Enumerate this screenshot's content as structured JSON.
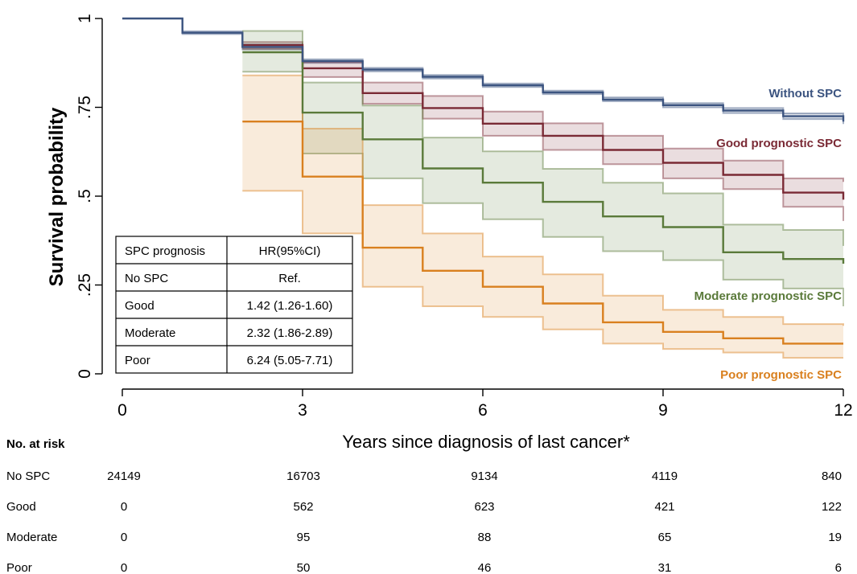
{
  "chart_data": {
    "type": "line",
    "subtype": "kaplan-meier step",
    "xlabel": "Years since diagnosis of last cancer*",
    "ylabel": "Survival probability",
    "xlim": [
      0,
      12
    ],
    "ylim": [
      0,
      1
    ],
    "xticks": [
      0,
      3,
      6,
      9,
      12
    ],
    "xtick_labels": [
      "0",
      "3",
      "6",
      "9",
      "12"
    ],
    "yticks": [
      0,
      0.25,
      0.5,
      0.75,
      1
    ],
    "ytick_labels": [
      "0",
      ".25",
      ".5",
      ".75",
      "1"
    ],
    "grid": false,
    "series": [
      {
        "name": "Without SPC",
        "color": "#3c5480",
        "x": [
          0,
          1,
          2,
          3,
          4,
          5,
          6,
          7,
          8,
          9,
          10,
          11,
          12
        ],
        "y": [
          1.0,
          0.96,
          0.92,
          0.88,
          0.856,
          0.836,
          0.812,
          0.792,
          0.772,
          0.756,
          0.741,
          0.725,
          0.71
        ],
        "ci_lower": [
          1.0,
          0.956,
          0.913,
          0.875,
          0.851,
          0.831,
          0.807,
          0.787,
          0.767,
          0.75,
          0.734,
          0.717,
          0.703
        ],
        "ci_upper": [
          1.0,
          0.964,
          0.927,
          0.885,
          0.861,
          0.841,
          0.817,
          0.797,
          0.778,
          0.762,
          0.748,
          0.733,
          0.718
        ]
      },
      {
        "name": "Good prognostic SPC",
        "color": "#7a2a35",
        "x": [
          2,
          3,
          4,
          5,
          6,
          7,
          8,
          9,
          10,
          11,
          12
        ],
        "y": [
          0.925,
          0.86,
          0.79,
          0.748,
          0.704,
          0.67,
          0.63,
          0.594,
          0.56,
          0.51,
          0.49
        ],
        "ci_lower": [
          0.915,
          0.835,
          0.76,
          0.718,
          0.67,
          0.63,
          0.59,
          0.55,
          0.52,
          0.47,
          0.43
        ],
        "ci_upper": [
          0.934,
          0.877,
          0.82,
          0.782,
          0.738,
          0.705,
          0.67,
          0.634,
          0.6,
          0.55,
          0.54
        ]
      },
      {
        "name": "Moderate prognostic SPC",
        "color": "#5a7a3a",
        "x": [
          2,
          3,
          4,
          5,
          6,
          7,
          8,
          9,
          10,
          11,
          12
        ],
        "y": [
          0.905,
          0.735,
          0.66,
          0.578,
          0.538,
          0.484,
          0.443,
          0.413,
          0.342,
          0.323,
          0.31
        ],
        "ci_lower": [
          0.85,
          0.62,
          0.55,
          0.48,
          0.435,
          0.385,
          0.345,
          0.32,
          0.265,
          0.24,
          0.19
        ],
        "ci_upper": [
          0.965,
          0.82,
          0.755,
          0.665,
          0.626,
          0.577,
          0.538,
          0.508,
          0.42,
          0.405,
          0.36
        ]
      },
      {
        "name": "Poor prognostic SPC",
        "color": "#d9801f",
        "x": [
          2,
          3,
          4,
          5,
          6,
          7,
          8,
          9,
          10,
          11,
          12
        ],
        "y": [
          0.71,
          0.555,
          0.355,
          0.29,
          0.245,
          0.198,
          0.145,
          0.118,
          0.1,
          0.085,
          0.085
        ],
        "ci_lower": [
          0.515,
          0.395,
          0.245,
          0.19,
          0.16,
          0.125,
          0.085,
          0.07,
          0.06,
          0.045,
          0.045
        ],
        "ci_upper": [
          0.84,
          0.69,
          0.475,
          0.395,
          0.33,
          0.28,
          0.22,
          0.18,
          0.16,
          0.14,
          0.135
        ]
      }
    ],
    "hr_table": {
      "header": [
        "SPC prognosis",
        "HR(95%CI)"
      ],
      "rows": [
        [
          "No SPC",
          "Ref."
        ],
        [
          "Good",
          "1.42 (1.26-1.60)"
        ],
        [
          "Moderate",
          "2.32 (1.86-2.89)"
        ],
        [
          "Poor",
          "6.24 (5.05-7.71)"
        ]
      ]
    },
    "risk_table": {
      "title": "No. at risk",
      "rows": [
        {
          "label": "No SPC",
          "values": [
            "24149",
            "16703",
            "9134",
            "4119",
            "840"
          ]
        },
        {
          "label": "Good",
          "values": [
            "0",
            "562",
            "623",
            "421",
            "122"
          ]
        },
        {
          "label": "Moderate",
          "values": [
            "0",
            "95",
            "88",
            "65",
            "19"
          ]
        },
        {
          "label": "Poor",
          "values": [
            "0",
            "50",
            "46",
            "31",
            "6"
          ]
        }
      ]
    }
  }
}
